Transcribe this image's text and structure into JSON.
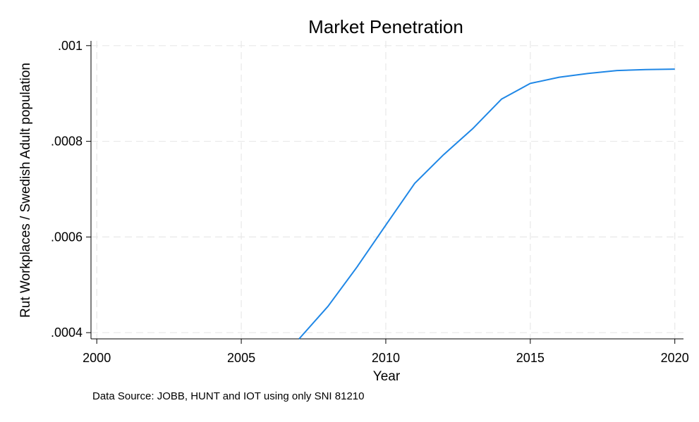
{
  "chart_data": {
    "type": "line",
    "title": "Market Penetration",
    "xlabel": "Year",
    "ylabel": "Rut Workplaces / Swedish Adult population",
    "note": "Data Source: JOBB, HUNT and IOT using only SNI 81210",
    "xlim": [
      1999.8,
      2020.3
    ],
    "ylim": [
      0.000387,
      0.00101
    ],
    "x_ticks": [
      2000,
      2005,
      2010,
      2015,
      2020
    ],
    "x_tick_labels": [
      "2000",
      "2005",
      "2010",
      "2015",
      "2020"
    ],
    "y_ticks": [
      0.0004,
      0.0006,
      0.0008,
      0.001
    ],
    "y_tick_labels": [
      ".0004",
      ".0006",
      ".0008",
      ".001"
    ],
    "grid": true,
    "series": [
      {
        "color": "#1f87e6",
        "x": [
          2007,
          2008,
          2009,
          2010,
          2011,
          2012,
          2013,
          2014,
          2015,
          2016,
          2017,
          2018,
          2019,
          2020
        ],
        "y": [
          0.000387,
          0.000455,
          0.000537,
          0.000625,
          0.000712,
          0.000772,
          0.000826,
          0.000888,
          0.000921,
          0.000934,
          0.000942,
          0.000948,
          0.00095,
          0.000951
        ]
      }
    ]
  }
}
